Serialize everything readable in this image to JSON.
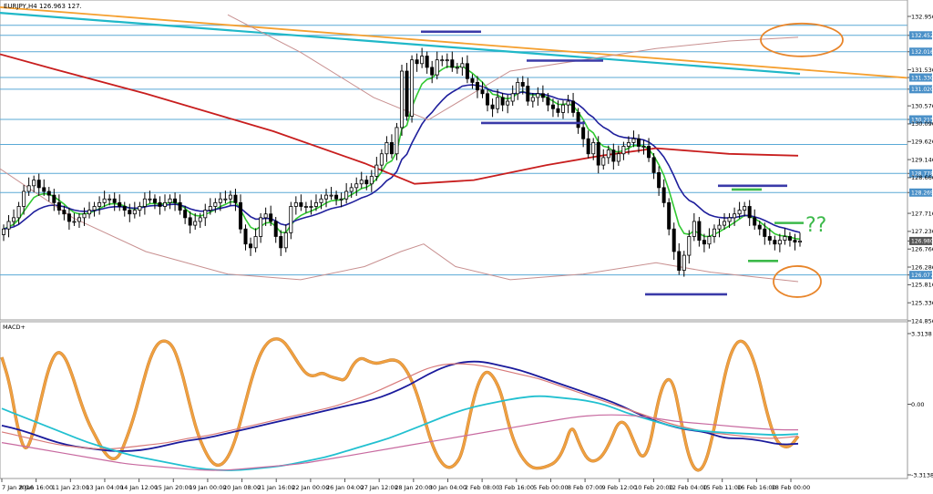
{
  "window": {
    "symbol_label": "EURJPY,H4  126.963 127.",
    "indicator_label": "MACD+"
  },
  "annotations": {
    "question_marks": "??"
  },
  "colors": {
    "support_resistance_line": "#5aa9d6",
    "price_tag": "#4a90c8",
    "bull_candle": "#ffffff",
    "bear_candle": "#000000",
    "ema_fast": "#32c832",
    "ema_mid": "#1f1f9c",
    "ma_slow": "#c81e1e",
    "envelope": "#c89090",
    "trendline_orange": "#f5a030",
    "trendline_cyan": "#20b8c8",
    "marker_blue": "#3a3aa8",
    "marker_green": "#3cb94a",
    "ellipse": "#e8852a",
    "macd_orange": "#f0a040",
    "macd_blue": "#1a1a9c",
    "macd_pink": "#c86aa0",
    "macd_cyan": "#22c0d0",
    "macd_salmon": "#d87a7a"
  },
  "chart_data": [
    {
      "type": "candlestick",
      "title": "EURJPY,H4",
      "y_ticks": [
        "132.956",
        "132.452",
        "132.016",
        "131.536",
        "131.330",
        "131.020",
        "130.576",
        "130.215",
        "130.096",
        "129.626",
        "129.146",
        "128.778",
        "128.666",
        "128.269",
        "127.716",
        "127.236",
        "126.980",
        "126.766",
        "126.286",
        "126.077",
        "125.816",
        "125.336",
        "124.856"
      ],
      "highlighted_levels": [
        "132.452",
        "132.016",
        "131.330",
        "131.020",
        "130.215",
        "128.778",
        "128.269",
        "126.980",
        "126.077"
      ],
      "current_price": 126.98,
      "horizontal_levels": [
        132.72,
        132.452,
        132.016,
        131.33,
        131.02,
        130.215,
        129.55,
        128.778,
        128.269,
        126.077
      ],
      "x_labels": [
        "7 Jan 2016",
        "8 Jan 16:00",
        "11 Jan 23:00",
        "13 Jan 04:00",
        "14 Jan 12:00",
        "15 Jan 20:00",
        "19 Jan 00:00",
        "20 Jan 08:00",
        "21 Jan 16:00",
        "22 Jan 00:00",
        "26 Jan 04:00",
        "27 Jan 12:00",
        "28 Jan 20:00",
        "30 Jan 04:00",
        "2 Feb 08:00",
        "3 Feb 16:00",
        "5 Feb 00:00",
        "8 Feb 07:00",
        "9 Feb 12:00",
        "10 Feb 20:00",
        "12 Feb 04:00",
        "15 Feb 11:00",
        "16 Feb 16:00",
        "18 Feb 00:00"
      ],
      "closes": [
        127.3,
        127.5,
        127.6,
        127.9,
        128.3,
        128.45,
        128.6,
        128.4,
        128.3,
        128.2,
        128.0,
        127.8,
        127.7,
        127.5,
        127.5,
        127.6,
        127.7,
        127.8,
        127.9,
        128.0,
        128.1,
        128.1,
        128.0,
        127.9,
        127.8,
        127.7,
        127.8,
        127.9,
        128.1,
        128.1,
        128.0,
        127.9,
        128.0,
        128.1,
        128.0,
        127.8,
        127.6,
        127.4,
        127.5,
        127.6,
        127.8,
        127.9,
        128.0,
        128.1,
        128.1,
        128.2,
        128.0,
        127.3,
        126.9,
        126.8,
        127.1,
        127.6,
        127.7,
        127.5,
        127.1,
        126.8,
        127.2,
        127.9,
        128.0,
        127.9,
        127.9,
        127.9,
        128.0,
        128.1,
        128.2,
        128.2,
        128.1,
        128.1,
        128.3,
        128.4,
        128.5,
        128.6,
        128.5,
        128.7,
        129.0,
        129.3,
        129.6,
        129.3,
        130.0,
        131.5,
        130.3,
        131.8,
        131.7,
        131.9,
        131.6,
        131.4,
        131.8,
        131.8,
        131.8,
        131.6,
        131.6,
        131.7,
        131.3,
        131.2,
        131.0,
        130.9,
        130.6,
        130.5,
        130.8,
        130.6,
        130.7,
        130.9,
        131.2,
        131.1,
        130.7,
        130.8,
        130.9,
        130.8,
        130.6,
        130.5,
        130.4,
        130.6,
        130.7,
        130.4,
        130.0,
        129.7,
        129.3,
        129.6,
        129.0,
        129.2,
        129.4,
        129.1,
        129.3,
        129.5,
        129.6,
        129.7,
        129.5,
        129.5,
        129.2,
        128.8,
        128.4,
        128.0,
        127.3,
        126.7,
        126.2,
        126.6,
        127.1,
        127.5,
        127.0,
        126.9,
        127.1,
        127.3,
        127.4,
        127.5,
        127.6,
        127.7,
        127.8,
        127.9,
        127.6,
        127.4,
        127.3,
        127.1,
        127.0,
        126.9,
        127.0,
        127.1,
        127.0,
        126.95,
        126.98
      ],
      "overlays": [
        "EMA fast (green)",
        "EMA mid (navy)",
        "MA slow (red)",
        "Envelope (pink)",
        "Trendline (orange)",
        "Trendline (cyan)"
      ]
    },
    {
      "type": "line",
      "title": "MACD+",
      "y_ticks": [
        "3.3138",
        "0.00",
        "-3.3138"
      ],
      "series": [
        {
          "values": [
            2.2,
            1.0,
            -1.1,
            -2.3,
            -1.4,
            0.2,
            1.7,
            2.5,
            2.3,
            1.4,
            0.2,
            -0.8,
            -1.5,
            -2.2,
            -2.6,
            -2.5,
            -1.6,
            -0.5,
            0.9,
            2.2,
            2.9,
            3.0,
            2.7,
            1.6,
            0.1,
            -1.3,
            -2.2,
            -2.8,
            -2.9,
            -2.5,
            -1.6,
            -0.2,
            1.2,
            2.3,
            2.9,
            3.1,
            3.0,
            2.5,
            1.9,
            1.4,
            1.3,
            1.5,
            1.3,
            1.2,
            1.1,
            1.9,
            2.2,
            2.0,
            1.9,
            2.0,
            2.1,
            2.0,
            1.5,
            0.7,
            -0.5,
            -1.8,
            -2.6,
            -3.0,
            -2.9,
            -2.3,
            -0.4,
            1.0,
            1.6,
            1.3,
            0.5,
            -1.1,
            -2.1,
            -2.7,
            -3.0,
            -3.0,
            -2.9,
            -2.7,
            -2.1,
            -0.9,
            -1.9,
            -2.6,
            -2.7,
            -2.4,
            -1.7,
            -0.8,
            -0.9,
            -1.8,
            -2.6,
            -2.0,
            0.1,
            1.2,
            1.1,
            -0.8,
            -2.5,
            -3.2,
            -2.9,
            -1.6,
            0.3,
            2.0,
            2.9,
            3.0,
            2.4,
            1.2,
            -0.4,
            -1.6,
            -2.0,
            -2.0,
            -1.5
          ]
        },
        {
          "values": [
            -1.0,
            -1.2,
            -1.5,
            -1.8,
            -2.0,
            -2.1,
            -2.2,
            -2.2,
            -2.1,
            -1.9,
            -1.7,
            -1.6,
            -1.4,
            -1.2,
            -1.0,
            -0.8,
            -0.6,
            -0.4,
            -0.2,
            0.0,
            0.2,
            0.5,
            0.9,
            1.4,
            1.8,
            2.0,
            2.0,
            1.8,
            1.6,
            1.3,
            1.0,
            0.7,
            0.4,
            0.1,
            -0.3,
            -0.7,
            -1.0,
            -1.2,
            -1.3,
            -1.6,
            -1.6,
            -1.7,
            -1.9,
            -1.85
          ]
        },
        {
          "values": [
            -1.3,
            -1.5,
            -1.7,
            -1.9,
            -2.0,
            -2.1,
            -2.1,
            -2.0,
            -1.9,
            -1.8,
            -1.6,
            -1.5,
            -1.3,
            -1.1,
            -0.9,
            -0.7,
            -0.5,
            -0.3,
            -0.1,
            0.2,
            0.5,
            0.9,
            1.3,
            1.7,
            1.9,
            1.9,
            1.8,
            1.6,
            1.4,
            1.2,
            0.9,
            0.6,
            0.3,
            0.0,
            -0.3,
            -0.6,
            -0.9,
            -1.1,
            -1.3,
            -1.4,
            -1.5,
            -1.6,
            -1.6,
            -1.5
          ]
        },
        {
          "values": [
            -0.2,
            -0.6,
            -1.0,
            -1.4,
            -1.8,
            -2.1,
            -2.4,
            -2.6,
            -2.8,
            -3.0,
            -3.1,
            -3.1,
            -3.0,
            -2.9,
            -2.7,
            -2.5,
            -2.2,
            -1.9,
            -1.6,
            -1.2,
            -0.8,
            -0.4,
            -0.1,
            0.1,
            0.3,
            0.4,
            0.3,
            0.2,
            0.0,
            -0.4,
            -0.7,
            -1.0,
            -1.2,
            -1.3,
            -1.35,
            -1.4,
            -1.45,
            -1.4
          ]
        },
        {
          "values": [
            -1.8,
            -2.0,
            -2.2,
            -2.4,
            -2.6,
            -2.8,
            -2.9,
            -3.0,
            -3.1,
            -3.1,
            -3.0,
            -2.9,
            -2.8,
            -2.6,
            -2.4,
            -2.2,
            -2.0,
            -1.8,
            -1.6,
            -1.4,
            -1.2,
            -1.0,
            -0.8,
            -0.6,
            -0.5,
            -0.5,
            -0.6,
            -0.8,
            -0.9,
            -1.0,
            -1.1,
            -1.2,
            -1.2
          ]
        }
      ]
    }
  ]
}
